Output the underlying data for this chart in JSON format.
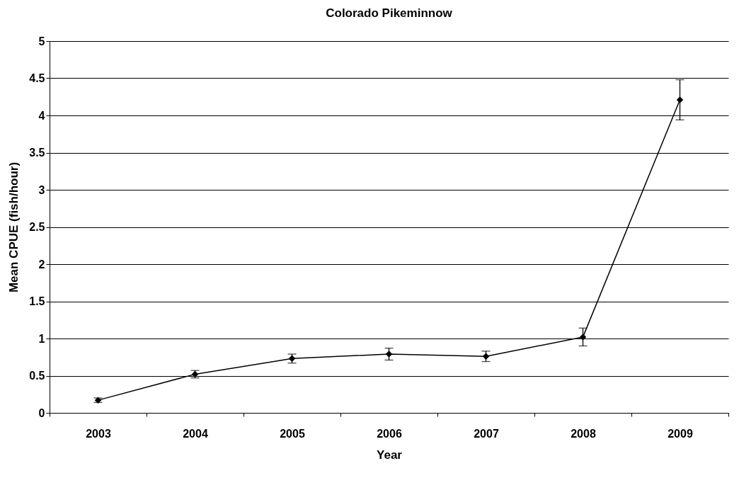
{
  "chart_data": {
    "type": "line",
    "title": "Colorado Pikeminnow",
    "xlabel": "Year",
    "ylabel": "Mean CPUE (fish/hour)",
    "categories": [
      "2003",
      "2004",
      "2005",
      "2006",
      "2007",
      "2008",
      "2009"
    ],
    "series": [
      {
        "color": "#000000",
        "values": [
          0.17,
          0.52,
          0.73,
          0.79,
          0.76,
          1.02,
          4.21
        ],
        "errors": [
          0.03,
          0.05,
          0.06,
          0.08,
          0.07,
          0.12,
          0.27
        ]
      }
    ],
    "ylim": [
      0,
      5
    ],
    "yticks": [
      0,
      0.5,
      1,
      1.5,
      2,
      2.5,
      3,
      3.5,
      4,
      4.5,
      5
    ],
    "grid": "y",
    "marker": "diamond",
    "line_style": "solid"
  }
}
